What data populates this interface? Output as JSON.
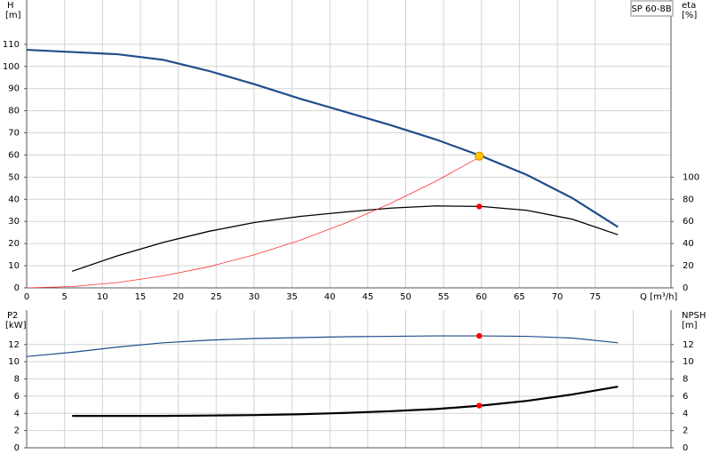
{
  "chart_data": [
    {
      "type": "line",
      "title": "SP 60-8B",
      "ylabel": "H",
      "yunit": "[m]",
      "y2label": "eta",
      "y2unit": "[%]",
      "xlabel": "Q [m³/h]",
      "xlim": [
        0,
        85
      ],
      "xticks": [
        0,
        5,
        10,
        15,
        20,
        25,
        30,
        35,
        40,
        45,
        50,
        55,
        60,
        65,
        70,
        75
      ],
      "xtick_labels": true,
      "ylim": [
        0,
        130
      ],
      "yticks": [
        0,
        10,
        20,
        30,
        40,
        50,
        60,
        70,
        80,
        90,
        100,
        110
      ],
      "y2lim": [
        0,
        260
      ],
      "y2ticks": [
        0,
        20,
        40,
        60,
        80,
        100
      ],
      "grid": true,
      "series": [
        {
          "color": "#1f4e8c",
          "width": 2.2,
          "x": [
            0,
            6,
            12,
            18,
            24,
            30,
            36,
            42,
            48,
            54,
            60,
            66,
            72,
            78
          ],
          "values": [
            107.5,
            106.5,
            105.5,
            103,
            98,
            92,
            85.5,
            79.5,
            73.5,
            67,
            59.5,
            51,
            40.5,
            27.5
          ]
        },
        {
          "color": "#000000",
          "width": 1.3,
          "axis": "y2",
          "x": [
            6,
            12,
            18,
            24,
            30,
            36,
            42,
            48,
            54,
            60,
            66,
            72,
            78
          ],
          "values": [
            15,
            29,
            41,
            51,
            59,
            64.5,
            68.5,
            72,
            74,
            73.5,
            70,
            62,
            48
          ]
        },
        {
          "color": "#ff3030",
          "width": 0.8,
          "x": [
            0,
            6,
            12,
            18,
            24,
            30,
            36,
            42,
            48,
            54,
            60
          ],
          "values": [
            0,
            0.6,
            2.4,
            5.4,
            9.5,
            14.9,
            21.4,
            29.2,
            38.1,
            48.2,
            59.5
          ]
        }
      ],
      "duty_points": [
        {
          "x": 59.7,
          "y": 59.5,
          "color": "#ffcc00"
        },
        {
          "x": 59.7,
          "y": 73.5,
          "axis": "y2",
          "color": "#ff0000"
        }
      ]
    },
    {
      "type": "line",
      "ylabel": "P2",
      "yunit": "[kW]",
      "y2label": "NPSH",
      "y2unit": "[m]",
      "xlim": [
        0,
        85
      ],
      "xticks": [
        0,
        5,
        10,
        15,
        20,
        25,
        30,
        35,
        40,
        45,
        50,
        55,
        60,
        65,
        70,
        75,
        80
      ],
      "xtick_labels": false,
      "ylim": [
        0,
        16
      ],
      "yticks": [
        0,
        2,
        4,
        6,
        8,
        10,
        12
      ],
      "y2lim": [
        0,
        16
      ],
      "y2ticks": [
        0,
        2,
        4,
        6,
        8,
        10,
        12
      ],
      "grid": true,
      "series": [
        {
          "color": "#1f4e8c",
          "width": 1.2,
          "x": [
            0,
            6,
            12,
            18,
            24,
            30,
            36,
            42,
            48,
            54,
            60,
            66,
            72,
            78
          ],
          "values": [
            10.6,
            11.1,
            11.7,
            12.2,
            12.5,
            12.7,
            12.8,
            12.9,
            12.95,
            13,
            13,
            12.95,
            12.75,
            12.2
          ]
        },
        {
          "color": "#000000",
          "width": 2.2,
          "axis": "y2",
          "x": [
            6,
            12,
            18,
            24,
            30,
            36,
            42,
            48,
            54,
            60,
            66,
            72,
            78
          ],
          "values": [
            3.7,
            3.7,
            3.7,
            3.75,
            3.8,
            3.9,
            4.05,
            4.25,
            4.5,
            4.9,
            5.45,
            6.2,
            7.1
          ]
        }
      ],
      "duty_points": [
        {
          "x": 59.7,
          "y": 13,
          "color": "#ff0000"
        },
        {
          "x": 59.7,
          "y": 4.9,
          "axis": "y2",
          "color": "#ff0000"
        }
      ]
    }
  ]
}
